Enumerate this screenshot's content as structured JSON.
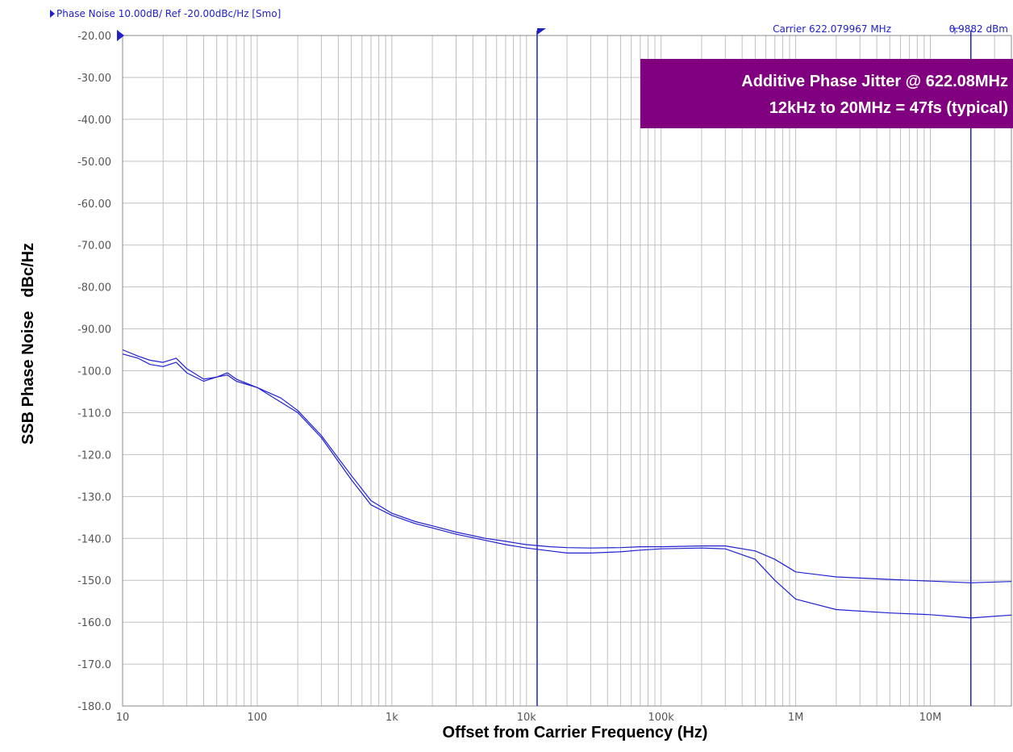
{
  "header": {
    "trace_info": "Phase Noise 10.00dB/ Ref -20.00dBc/Hz [Smo]",
    "carrier": "Carrier 622.079967 MHz",
    "power": "0.9882 dBm"
  },
  "annotation": {
    "line1": "Additive Phase Jitter @ 622.08MHz",
    "line2": "12kHz to 20MHz = 47fs (typical)"
  },
  "colors": {
    "trace": "#2020d0",
    "marker": "#2020c8",
    "grid": "#c0c0c0",
    "annotation_bg": "#800080",
    "header_text": "#2020c8"
  },
  "chart_data": {
    "type": "line",
    "xscale": "log",
    "xlabel": "Offset from Carrier Frequency (Hz)",
    "ylabel": "SSB Phase Noise   dBc/Hz",
    "xlim": [
      10,
      40000000
    ],
    "ylim": [
      -180,
      -20
    ],
    "yticks": [
      -20,
      -30,
      -40,
      -50,
      -60,
      -70,
      -80,
      -90,
      -100,
      -110,
      -120,
      -130,
      -140,
      -150,
      -160,
      -170,
      -180
    ],
    "ytick_labels": [
      "-20.00",
      "-30.00",
      "-40.00",
      "-50.00",
      "-60.00",
      "-70.00",
      "-80.00",
      "-90.00",
      "-100.0",
      "-110.0",
      "-120.0",
      "-130.0",
      "-140.0",
      "-150.0",
      "-160.0",
      "-170.0",
      "-180.0"
    ],
    "xticks": [
      10,
      100,
      1000,
      10000,
      100000,
      1000000,
      10000000
    ],
    "xtick_labels": [
      "10",
      "100",
      "1k",
      "10k",
      "100k",
      "1M",
      "10M"
    ],
    "grid": true,
    "markers_x": [
      12000,
      20000000
    ],
    "series": [
      {
        "x": [
          10,
          13,
          16,
          20,
          25,
          30,
          40,
          50,
          60,
          70,
          100,
          150,
          200,
          300,
          500,
          700,
          1000,
          1500,
          2000,
          3000,
          5000,
          7000,
          10000,
          15000,
          20000,
          30000,
          50000,
          70000,
          100000,
          200000,
          300000,
          500000,
          700000,
          1000000,
          2000000,
          5000000,
          10000000,
          20000000,
          40000000
        ],
        "values": [
          -95,
          -96.5,
          -97.5,
          -98,
          -97,
          -99.5,
          -102,
          -101.5,
          -101,
          -102.5,
          -104,
          -106.5,
          -109.5,
          -115.5,
          -125,
          -131,
          -134,
          -136,
          -137,
          -138.5,
          -140,
          -140.7,
          -141.5,
          -142,
          -142.2,
          -142.3,
          -142.2,
          -142,
          -142,
          -141.8,
          -141.8,
          -143,
          -145,
          -148,
          -149.2,
          -149.8,
          -150.2,
          -150.6,
          -150.3
        ]
      },
      {
        "x": [
          10,
          13,
          16,
          20,
          25,
          30,
          40,
          50,
          60,
          70,
          100,
          150,
          200,
          300,
          500,
          700,
          1000,
          1500,
          2000,
          3000,
          5000,
          7000,
          10000,
          15000,
          20000,
          30000,
          50000,
          70000,
          100000,
          200000,
          300000,
          500000,
          700000,
          1000000,
          2000000,
          5000000,
          10000000,
          20000000,
          40000000
        ],
        "values": [
          -96,
          -97,
          -98.5,
          -99,
          -98,
          -100.5,
          -102.5,
          -101.5,
          -100.5,
          -102,
          -104,
          -107.5,
          -110,
          -116,
          -126,
          -132,
          -134.5,
          -136.5,
          -137.5,
          -139,
          -140.5,
          -141.5,
          -142.3,
          -143,
          -143.5,
          -143.5,
          -143.2,
          -142.8,
          -142.5,
          -142.3,
          -142.5,
          -145,
          -150,
          -154.5,
          -157,
          -157.8,
          -158.2,
          -159,
          -158.3
        ]
      }
    ]
  }
}
